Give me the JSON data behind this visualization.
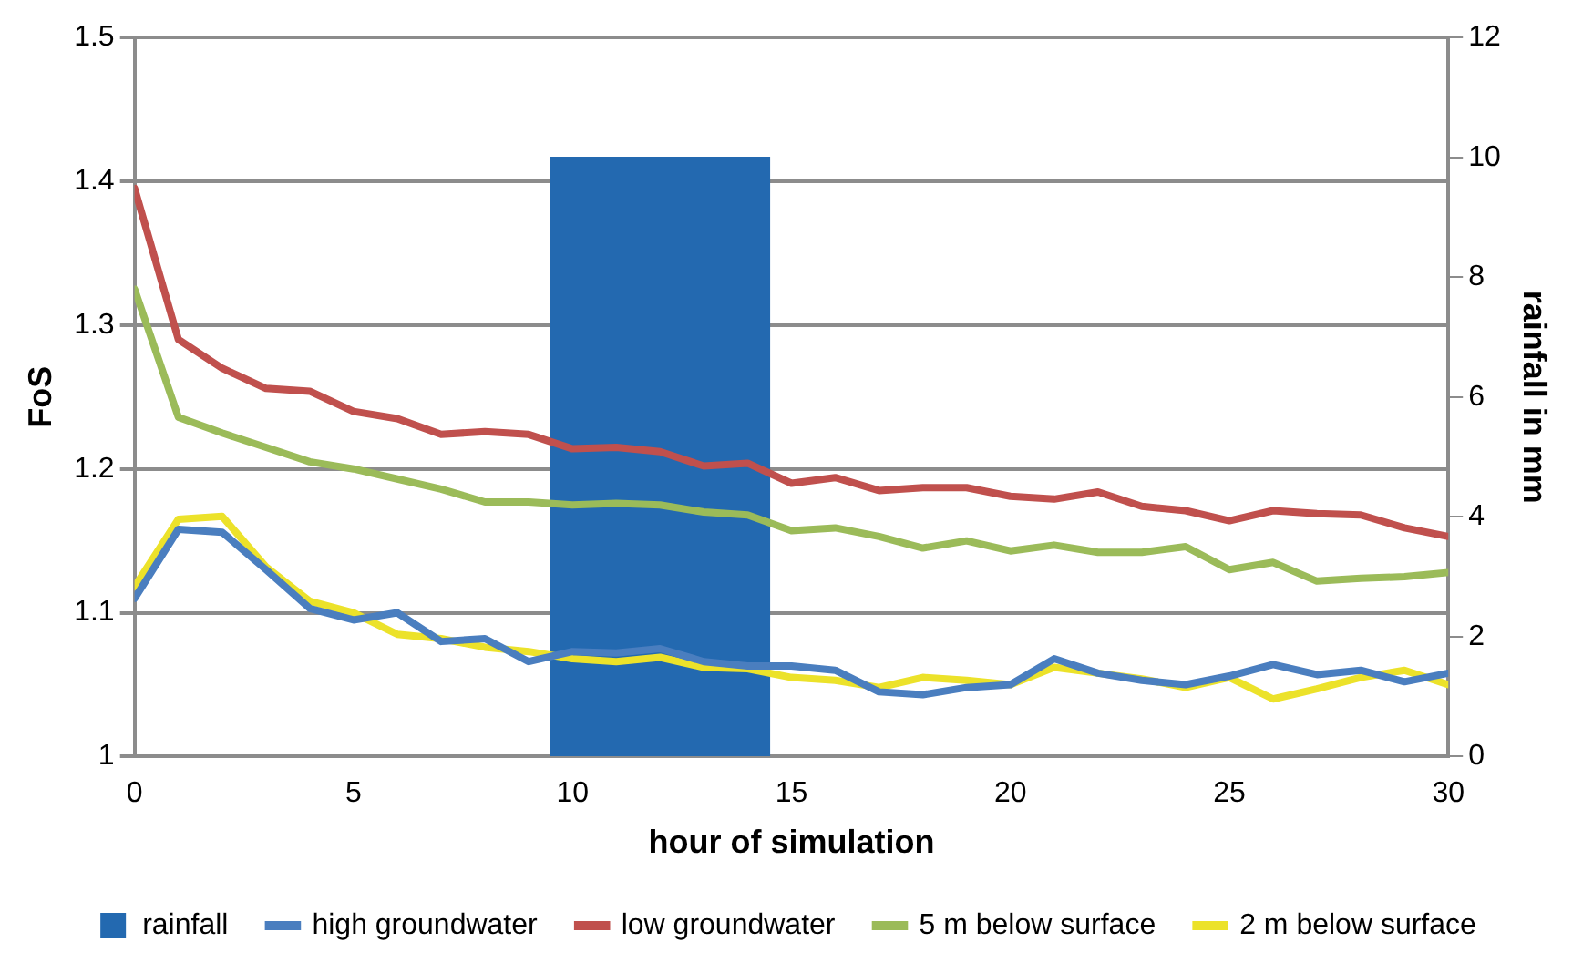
{
  "chart_data": {
    "type": "line",
    "xlabel": "hour of simulation",
    "ylabel": "FoS",
    "y2label": "rainfall in mm",
    "x": [
      0,
      1,
      2,
      3,
      4,
      5,
      6,
      7,
      8,
      9,
      10,
      11,
      12,
      13,
      14,
      15,
      16,
      17,
      18,
      19,
      20,
      21,
      22,
      23,
      24,
      25,
      26,
      27,
      28,
      29,
      30
    ],
    "xlim": [
      0,
      30
    ],
    "xticks": [
      0,
      5,
      10,
      15,
      20,
      25,
      30
    ],
    "ylim": [
      1,
      1.5
    ],
    "yticks": [
      1,
      1.1,
      1.2,
      1.3,
      1.4,
      1.5
    ],
    "y2lim": [
      0,
      12
    ],
    "y2ticks": [
      0,
      2,
      4,
      6,
      8,
      10,
      12
    ],
    "grid": "y",
    "legend": "bottom",
    "marker": "none",
    "line_style": "solid",
    "series": [
      {
        "name": "rainfall",
        "type": "bar",
        "axis": "y2",
        "color": "#2369b0",
        "x": [
          12
        ],
        "values": [
          10
        ]
      },
      {
        "name": "high groundwater",
        "color": "#4a7ebf",
        "values": [
          1.11,
          1.158,
          1.156,
          1.13,
          1.103,
          1.095,
          1.1,
          1.08,
          1.082,
          1.066,
          1.073,
          1.072,
          1.075,
          1.066,
          1.063,
          1.063,
          1.06,
          1.045,
          1.043,
          1.048,
          1.05,
          1.068,
          1.058,
          1.053,
          1.05,
          1.056,
          1.064,
          1.057,
          1.06,
          1.052,
          1.058
        ]
      },
      {
        "name": "low groundwater",
        "color": "#c0504d",
        "values": [
          1.395,
          1.29,
          1.27,
          1.256,
          1.254,
          1.24,
          1.235,
          1.224,
          1.226,
          1.224,
          1.214,
          1.215,
          1.212,
          1.202,
          1.204,
          1.19,
          1.194,
          1.185,
          1.187,
          1.187,
          1.181,
          1.179,
          1.184,
          1.174,
          1.171,
          1.164,
          1.171,
          1.169,
          1.168,
          1.159,
          1.153
        ]
      },
      {
        "name": "5 m below surface",
        "color": "#9bbb59",
        "values": [
          1.325,
          1.236,
          1.225,
          1.215,
          1.205,
          1.2,
          1.193,
          1.186,
          1.177,
          1.177,
          1.175,
          1.176,
          1.175,
          1.17,
          1.168,
          1.157,
          1.159,
          1.153,
          1.145,
          1.15,
          1.143,
          1.147,
          1.142,
          1.142,
          1.146,
          1.13,
          1.135,
          1.122,
          1.124,
          1.125,
          1.128
        ]
      },
      {
        "name": "2 m below surface",
        "color": "#ece22a",
        "values": [
          1.118,
          1.165,
          1.167,
          1.132,
          1.108,
          1.1,
          1.085,
          1.082,
          1.076,
          1.073,
          1.068,
          1.066,
          1.069,
          1.062,
          1.061,
          1.055,
          1.053,
          1.048,
          1.055,
          1.053,
          1.05,
          1.062,
          1.058,
          1.054,
          1.048,
          1.055,
          1.04,
          1.047,
          1.055,
          1.06,
          1.05
        ]
      }
    ]
  }
}
